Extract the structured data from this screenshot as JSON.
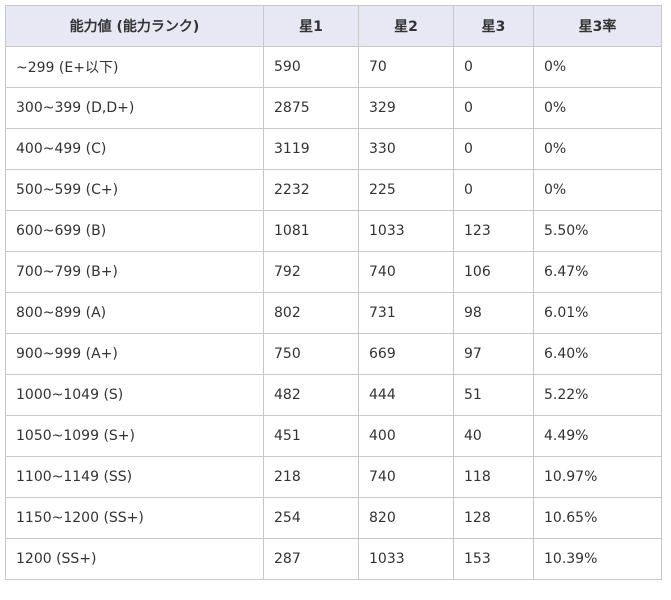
{
  "table": {
    "headers": [
      "能力値 (能力ランク)",
      "星1",
      "星2",
      "星3",
      "星3率"
    ],
    "rows": [
      [
        "~299 (E+以下)",
        "590",
        "70",
        "0",
        "0%"
      ],
      [
        "300~399 (D,D+)",
        "2875",
        "329",
        "0",
        "0%"
      ],
      [
        "400~499 (C)",
        "3119",
        "330",
        "0",
        "0%"
      ],
      [
        "500~599 (C+)",
        "2232",
        "225",
        "0",
        "0%"
      ],
      [
        "600~699 (B)",
        "1081",
        "1033",
        "123",
        "5.50%"
      ],
      [
        "700~799 (B+)",
        "792",
        "740",
        "106",
        "6.47%"
      ],
      [
        "800~899 (A)",
        "802",
        "731",
        "98",
        "6.01%"
      ],
      [
        "900~999 (A+)",
        "750",
        "669",
        "97",
        "6.40%"
      ],
      [
        "1000~1049 (S)",
        "482",
        "444",
        "51",
        "5.22%"
      ],
      [
        "1050~1099 (S+)",
        "451",
        "400",
        "40",
        "4.49%"
      ],
      [
        "1100~1149 (SS)",
        "218",
        "740",
        "118",
        "10.97%"
      ],
      [
        "1150~1200 (SS+)",
        "254",
        "820",
        "128",
        "10.65%"
      ],
      [
        "1200 (SS+)",
        "287",
        "1033",
        "153",
        "10.39%"
      ]
    ]
  },
  "colors": {
    "header_background": "#e8e8f4",
    "border": "#c8c8c8",
    "text": "#333333"
  }
}
